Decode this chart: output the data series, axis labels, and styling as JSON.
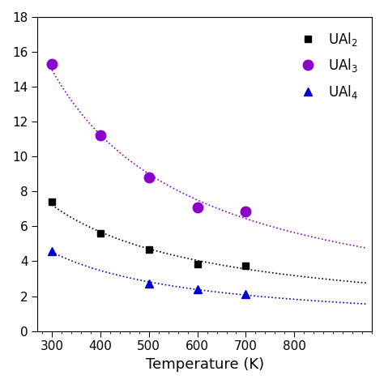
{
  "title": "",
  "xlabel": "Temperature (K)",
  "ylabel": "",
  "xlim": [
    270,
    960
  ],
  "ylim": [
    0,
    18
  ],
  "yticks": [
    0,
    2,
    4,
    6,
    8,
    10,
    12,
    14,
    16,
    18
  ],
  "xticks": [
    300,
    400,
    500,
    600,
    700,
    800
  ],
  "series": [
    {
      "label": "UAl$_2$",
      "x": [
        300,
        400,
        500,
        600,
        700
      ],
      "y": [
        7.4,
        5.6,
        4.65,
        3.85,
        3.75
      ],
      "marker": "s",
      "color": "#000000",
      "line_color": "#000000",
      "markersize": 6
    },
    {
      "label": "UAl$_3$",
      "x": [
        300,
        400,
        500,
        600,
        700
      ],
      "y": [
        15.3,
        11.2,
        8.8,
        7.1,
        6.85
      ],
      "marker": "o",
      "color": "#8B00C9",
      "line_color": "#8B00C9",
      "markersize": 9
    },
    {
      "label": "UAl$_4$",
      "x": [
        300,
        500,
        600,
        700
      ],
      "y": [
        4.6,
        2.7,
        2.4,
        2.1
      ],
      "marker": "^",
      "color": "#0000CC",
      "line_color": "#0000CC",
      "markersize": 7
    }
  ],
  "legend_loc": "upper right",
  "background_color": "#ffffff",
  "figsize": [
    4.74,
    4.74
  ],
  "dpi": 100
}
